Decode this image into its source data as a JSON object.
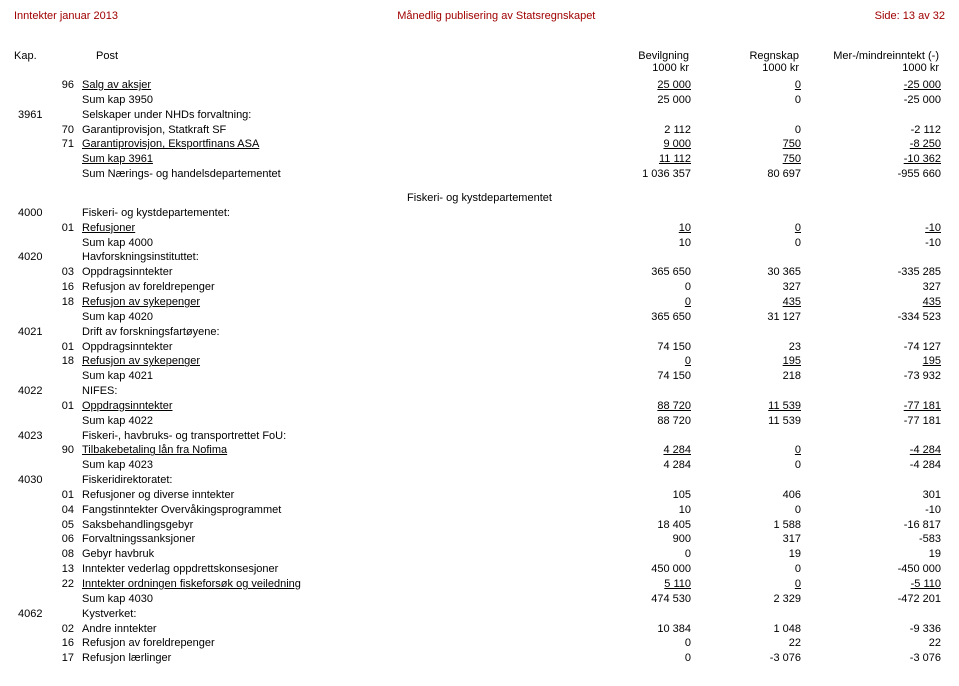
{
  "header": {
    "left": "Inntekter januar 2013",
    "center": "Månedlig publisering av Statsregnskapet",
    "right": "Side: 13 av 32"
  },
  "columnHeaders": {
    "kap": "Kap.",
    "post": "Post",
    "col1a": "Bevilgning",
    "col1b": "1000 kr",
    "col2a": "Regnskap",
    "col2b": "1000 kr",
    "col3a": "Mer-/mindreinntekt (-)",
    "col3b": "1000 kr"
  },
  "sectionTitle": "Fiskeri- og kystdepartementet",
  "rows": [
    {
      "kap": "",
      "post": "96",
      "desc": "Salg av aksjer",
      "c1": "25 000",
      "c2": "0",
      "c3": "-25 000",
      "u": true
    },
    {
      "kap": "",
      "post": "",
      "desc": "Sum kap 3950",
      "c1": "25 000",
      "c2": "0",
      "c3": "-25 000"
    },
    {
      "kap": "3961",
      "post": "",
      "desc": "Selskaper under NHDs forvaltning:",
      "c1": "",
      "c2": "",
      "c3": ""
    },
    {
      "kap": "",
      "post": "70",
      "desc": "Garantiprovisjon, Statkraft SF",
      "c1": "2 112",
      "c2": "0",
      "c3": "-2 112"
    },
    {
      "kap": "",
      "post": "71",
      "desc": "Garantiprovisjon, Eksportfinans ASA",
      "c1": "9 000",
      "c2": "750",
      "c3": "-8 250",
      "u": true
    },
    {
      "kap": "",
      "post": "",
      "desc": "Sum kap 3961",
      "c1": "11 112",
      "c2": "750",
      "c3": "-10 362",
      "u": true
    },
    {
      "kap": "",
      "post": "",
      "desc": "Sum Nærings- og handelsdepartementet",
      "c1": "1 036 357",
      "c2": "80 697",
      "c3": "-955 660"
    }
  ],
  "rows2": [
    {
      "kap": "4000",
      "post": "",
      "desc": "Fiskeri- og kystdepartementet:",
      "c1": "",
      "c2": "",
      "c3": ""
    },
    {
      "kap": "",
      "post": "01",
      "desc": "Refusjoner",
      "c1": "10",
      "c2": "0",
      "c3": "-10",
      "u": true
    },
    {
      "kap": "",
      "post": "",
      "desc": "Sum kap 4000",
      "c1": "10",
      "c2": "0",
      "c3": "-10"
    },
    {
      "kap": "4020",
      "post": "",
      "desc": "Havforskningsinstituttet:",
      "c1": "",
      "c2": "",
      "c3": ""
    },
    {
      "kap": "",
      "post": "03",
      "desc": "Oppdragsinntekter",
      "c1": "365 650",
      "c2": "30 365",
      "c3": "-335 285"
    },
    {
      "kap": "",
      "post": "16",
      "desc": "Refusjon av foreldrepenger",
      "c1": "0",
      "c2": "327",
      "c3": "327"
    },
    {
      "kap": "",
      "post": "18",
      "desc": "Refusjon av sykepenger",
      "c1": "0",
      "c2": "435",
      "c3": "435",
      "u": true
    },
    {
      "kap": "",
      "post": "",
      "desc": "Sum kap 4020",
      "c1": "365 650",
      "c2": "31 127",
      "c3": "-334 523"
    },
    {
      "kap": "4021",
      "post": "",
      "desc": "Drift av forskningsfartøyene:",
      "c1": "",
      "c2": "",
      "c3": ""
    },
    {
      "kap": "",
      "post": "01",
      "desc": "Oppdragsinntekter",
      "c1": "74 150",
      "c2": "23",
      "c3": "-74 127"
    },
    {
      "kap": "",
      "post": "18",
      "desc": "Refusjon av sykepenger",
      "c1": "0",
      "c2": "195",
      "c3": "195",
      "u": true
    },
    {
      "kap": "",
      "post": "",
      "desc": "Sum kap 4021",
      "c1": "74 150",
      "c2": "218",
      "c3": "-73 932"
    },
    {
      "kap": "4022",
      "post": "",
      "desc": "NIFES:",
      "c1": "",
      "c2": "",
      "c3": ""
    },
    {
      "kap": "",
      "post": "01",
      "desc": "Oppdragsinntekter",
      "c1": "88 720",
      "c2": "11 539",
      "c3": "-77 181",
      "u": true
    },
    {
      "kap": "",
      "post": "",
      "desc": "Sum kap 4022",
      "c1": "88 720",
      "c2": "11 539",
      "c3": "-77 181"
    },
    {
      "kap": "4023",
      "post": "",
      "desc": "Fiskeri-, havbruks- og transportrettet FoU:",
      "c1": "",
      "c2": "",
      "c3": ""
    },
    {
      "kap": "",
      "post": "90",
      "desc": "Tilbakebetaling lån fra Nofima",
      "c1": "4 284",
      "c2": "0",
      "c3": "-4 284",
      "u": true
    },
    {
      "kap": "",
      "post": "",
      "desc": "Sum kap 4023",
      "c1": "4 284",
      "c2": "0",
      "c3": "-4 284"
    },
    {
      "kap": "4030",
      "post": "",
      "desc": "Fiskeridirektoratet:",
      "c1": "",
      "c2": "",
      "c3": ""
    },
    {
      "kap": "",
      "post": "01",
      "desc": "Refusjoner og diverse inntekter",
      "c1": "105",
      "c2": "406",
      "c3": "301"
    },
    {
      "kap": "",
      "post": "04",
      "desc": "Fangstinntekter Overvåkingsprogrammet",
      "c1": "10",
      "c2": "0",
      "c3": "-10"
    },
    {
      "kap": "",
      "post": "05",
      "desc": "Saksbehandlingsgebyr",
      "c1": "18 405",
      "c2": "1 588",
      "c3": "-16 817"
    },
    {
      "kap": "",
      "post": "06",
      "desc": "Forvaltningssanksjoner",
      "c1": "900",
      "c2": "317",
      "c3": "-583"
    },
    {
      "kap": "",
      "post": "08",
      "desc": "Gebyr havbruk",
      "c1": "0",
      "c2": "19",
      "c3": "19"
    },
    {
      "kap": "",
      "post": "13",
      "desc": "Inntekter vederlag oppdrettskonsesjoner",
      "c1": "450 000",
      "c2": "0",
      "c3": "-450 000"
    },
    {
      "kap": "",
      "post": "22",
      "desc": "Inntekter ordningen fiskeforsøk og veiledning",
      "c1": "5 110",
      "c2": "0",
      "c3": "-5 110",
      "u": true
    },
    {
      "kap": "",
      "post": "",
      "desc": "Sum kap 4030",
      "c1": "474 530",
      "c2": "2 329",
      "c3": "-472 201"
    },
    {
      "kap": "4062",
      "post": "",
      "desc": "Kystverket:",
      "c1": "",
      "c2": "",
      "c3": ""
    },
    {
      "kap": "",
      "post": "02",
      "desc": "Andre inntekter",
      "c1": "10 384",
      "c2": "1 048",
      "c3": "-9 336"
    },
    {
      "kap": "",
      "post": "16",
      "desc": "Refusjon av foreldrepenger",
      "c1": "0",
      "c2": "22",
      "c3": "22"
    },
    {
      "kap": "",
      "post": "17",
      "desc": "Refusjon lærlinger",
      "c1": "0",
      "c2": "-3 076",
      "c3": "-3 076"
    }
  ]
}
